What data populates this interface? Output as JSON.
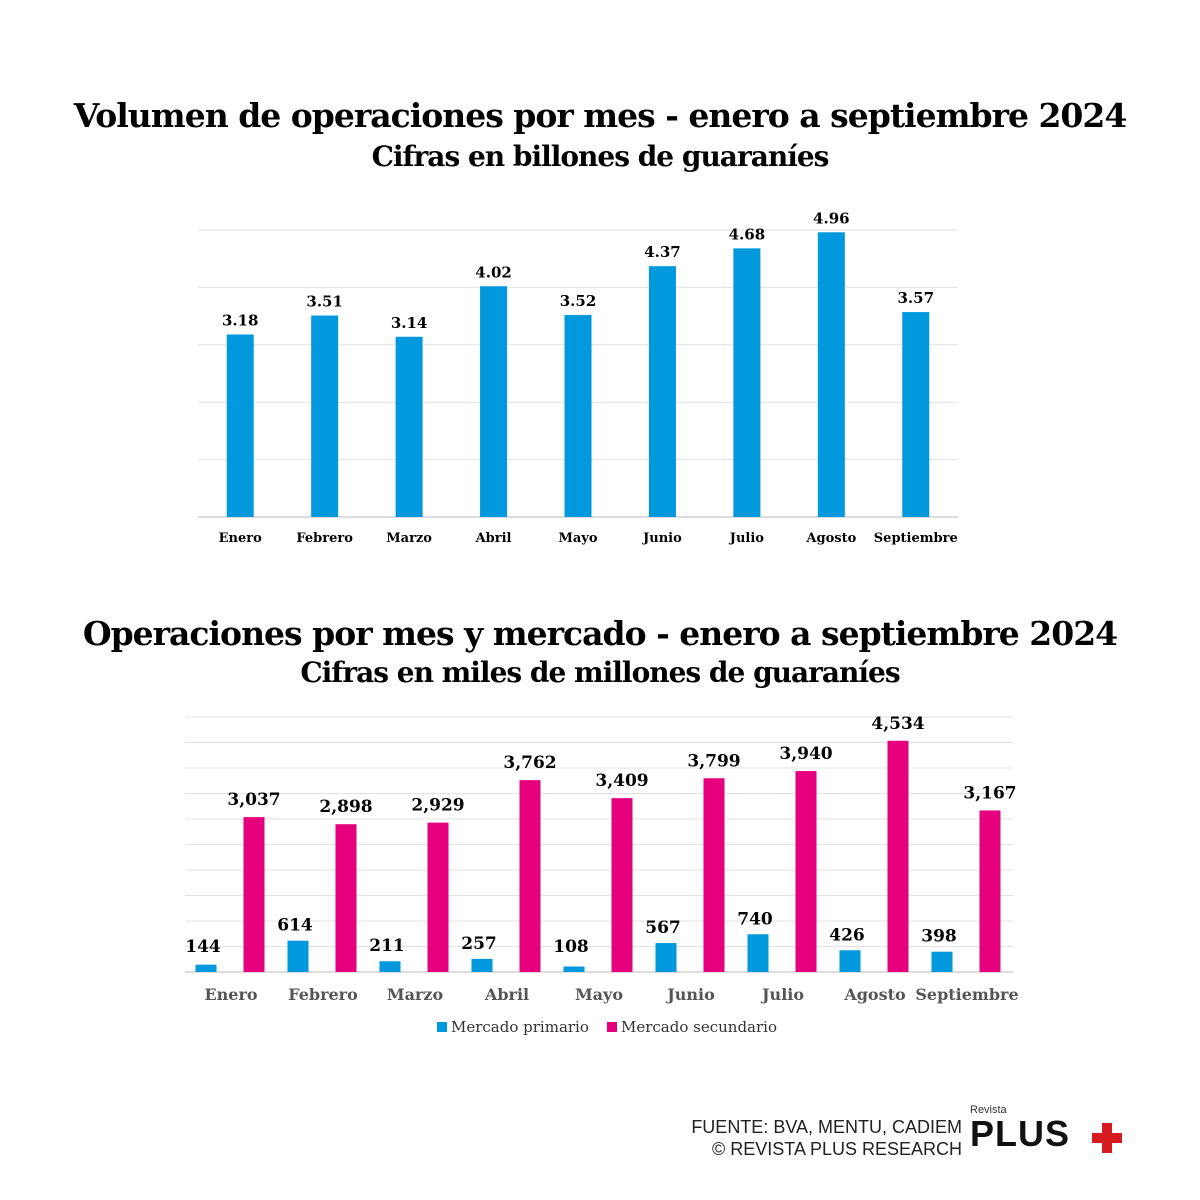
{
  "chart_data": [
    {
      "type": "bar",
      "title": "Volumen de operaciones por mes  -  enero a septiembre 2024",
      "subtitle": "Cifras en billones de guaraníes",
      "categories": [
        "Enero",
        "Febrero",
        "Marzo",
        "Abril",
        "Mayo",
        "Junio",
        "Julio",
        "Agosto",
        "Septiembre"
      ],
      "values": [
        3.18,
        3.51,
        3.14,
        4.02,
        3.52,
        4.37,
        4.68,
        4.96,
        3.57
      ],
      "data_labels": [
        "3.18",
        "3.51",
        "3.14",
        "4.02",
        "3.52",
        "4.37",
        "4.68",
        "4.96",
        "3.57"
      ],
      "ylim": [
        0,
        5
      ],
      "grid": true,
      "color": "#0099dd"
    },
    {
      "type": "bar",
      "title": "Operaciones por mes y mercado - enero a  septiembre 2024",
      "subtitle": "Cifras en miles de millones de guaraníes",
      "categories": [
        "Enero",
        "Febrero",
        "Marzo",
        "Abril",
        "Mayo",
        "Junio",
        "Julio",
        "Agosto",
        "Septiembre"
      ],
      "series": [
        {
          "name": "Mercado primario",
          "color": "#0099dd",
          "values": [
            144,
            614,
            211,
            257,
            108,
            567,
            740,
            426,
            398
          ],
          "labels": [
            "144",
            "614",
            "211",
            "257",
            "108",
            "567",
            "740",
            "426",
            "398"
          ]
        },
        {
          "name": "Mercado secundario",
          "color": "#e6007e",
          "values": [
            3037,
            2898,
            2929,
            3762,
            3409,
            3799,
            3940,
            4534,
            3167
          ],
          "labels": [
            "3,037",
            "2,898",
            "2,929",
            "3,762",
            "3,409",
            "3,799",
            "3,940",
            "4,534",
            "3,167"
          ]
        }
      ],
      "ylim": [
        0,
        5000
      ],
      "grid": true,
      "legend": "bottom"
    }
  ],
  "footer": {
    "source": "FUENTE: BVA, MENTU, CADIEM",
    "copyright": "© REVISTA PLUS RESEARCH",
    "logo_small": "Revista",
    "logo_big": "PLUS"
  }
}
